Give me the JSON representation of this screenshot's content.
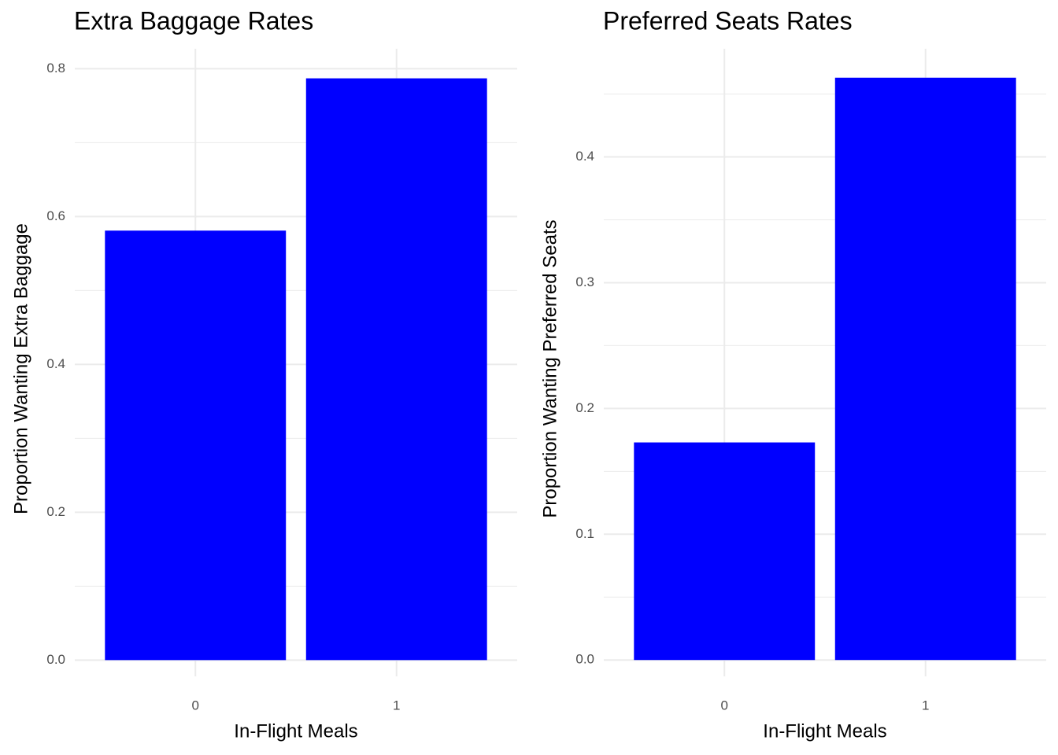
{
  "chart_data": [
    {
      "type": "bar",
      "title": "Extra Baggage Rates",
      "x_label": "In-Flight Meals",
      "y_label": "Proportion Wanting Extra Baggage",
      "categories": [
        "0",
        "1"
      ],
      "values": [
        0.581,
        0.787
      ],
      "color": "#0000ff",
      "ylim": [
        -0.022,
        0.827
      ],
      "yticks": [
        {
          "value": 0,
          "label": "0.0"
        },
        0.2,
        0.4,
        0.6,
        0.8
      ],
      "grid": true
    },
    {
      "type": "bar",
      "title": "Preferred Seats Rates",
      "x_label": "In-Flight Meals",
      "y_label": "Proportion Wanting Preferred Seats",
      "categories": [
        "0",
        "1"
      ],
      "values": [
        0.173,
        0.463
      ],
      "color": "#0000ff",
      "ylim": [
        -0.013,
        0.486
      ],
      "yticks": [
        {
          "value": 0,
          "label": "0.0"
        },
        0.1,
        0.2,
        0.3,
        0.4
      ],
      "grid": true
    }
  ]
}
